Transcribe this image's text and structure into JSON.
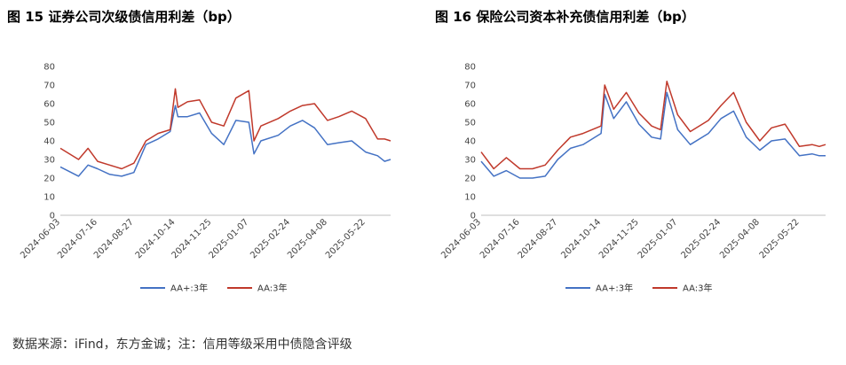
{
  "figures": [
    {
      "title": "图 15 证券公司次级债信用利差（bp）"
    },
    {
      "title": "图 16 保险公司资本补充债信用利差（bp）"
    }
  ],
  "footer": "数据来源：iFind，东方金诚；注：信用等级采用中债隐含评级",
  "colors": {
    "AA+": "#4472c4",
    "AA": "#c0392b"
  },
  "chart_data": [
    {
      "type": "line",
      "title": "图 15 证券公司次级债信用利差（bp）",
      "ylim": [
        0,
        80
      ],
      "yticks": [
        0,
        10,
        20,
        30,
        40,
        50,
        60,
        70,
        80
      ],
      "xtick_labels": [
        "2024-06-03",
        "2024-07-16",
        "2024-08-27",
        "2024-10-14",
        "2024-11-25",
        "2025-01-07",
        "2025-02-24",
        "2025-04-08",
        "2025-05-22"
      ],
      "legend": "bottom",
      "grid": false,
      "x": [
        "2024-06-03",
        "2024-06-24",
        "2024-07-05",
        "2024-07-16",
        "2024-07-30",
        "2024-08-13",
        "2024-08-27",
        "2024-09-10",
        "2024-09-24",
        "2024-10-08",
        "2024-10-14",
        "2024-10-17",
        "2024-10-28",
        "2024-11-11",
        "2024-11-25",
        "2024-12-09",
        "2024-12-23",
        "2025-01-07",
        "2025-01-13",
        "2025-01-21",
        "2025-02-10",
        "2025-02-24",
        "2025-03-10",
        "2025-03-24",
        "2025-04-08",
        "2025-04-21",
        "2025-05-06",
        "2025-05-22",
        "2025-06-05",
        "2025-06-13",
        "2025-06-20"
      ],
      "series": [
        {
          "name": "AA+:3年",
          "values": [
            26,
            21,
            27,
            25,
            22,
            21,
            23,
            38,
            41,
            45,
            59,
            53,
            53,
            55,
            44,
            38,
            51,
            50,
            33,
            40,
            43,
            48,
            51,
            47,
            38,
            39,
            40,
            34,
            32,
            29,
            30
          ]
        },
        {
          "name": "AA:3年",
          "values": [
            36,
            30,
            36,
            29,
            27,
            25,
            28,
            40,
            44,
            46,
            68,
            58,
            61,
            62,
            50,
            48,
            63,
            67,
            40,
            48,
            52,
            56,
            59,
            60,
            51,
            53,
            56,
            52,
            41,
            41,
            40
          ]
        }
      ]
    },
    {
      "type": "line",
      "title": "图 16 保险公司资本补充债信用利差（bp）",
      "ylim": [
        0,
        80
      ],
      "yticks": [
        0,
        10,
        20,
        30,
        40,
        50,
        60,
        70,
        80
      ],
      "xtick_labels": [
        "2024-06-03",
        "2024-07-16",
        "2024-08-27",
        "2024-10-14",
        "2024-11-25",
        "2025-01-07",
        "2025-02-24",
        "2025-04-08",
        "2025-05-22"
      ],
      "legend": "bottom",
      "grid": false,
      "x": [
        "2024-06-03",
        "2024-06-17",
        "2024-07-01",
        "2024-07-16",
        "2024-07-30",
        "2024-08-13",
        "2024-08-27",
        "2024-09-10",
        "2024-09-24",
        "2024-10-14",
        "2024-10-18",
        "2024-10-28",
        "2024-11-11",
        "2024-11-25",
        "2024-12-09",
        "2024-12-19",
        "2024-12-26",
        "2025-01-07",
        "2025-01-21",
        "2025-02-10",
        "2025-02-24",
        "2025-03-10",
        "2025-03-24",
        "2025-04-08",
        "2025-04-21",
        "2025-05-06",
        "2025-05-22",
        "2025-06-05",
        "2025-06-13",
        "2025-06-20"
      ],
      "series": [
        {
          "name": "AA+:3年",
          "values": [
            29,
            21,
            24,
            20,
            20,
            21,
            30,
            36,
            38,
            44,
            65,
            52,
            61,
            49,
            42,
            41,
            66,
            46,
            38,
            44,
            52,
            56,
            42,
            35,
            40,
            41,
            32,
            33,
            32,
            32
          ]
        },
        {
          "name": "AA:3年",
          "values": [
            34,
            25,
            31,
            25,
            25,
            27,
            35,
            42,
            44,
            48,
            70,
            57,
            66,
            55,
            48,
            46,
            72,
            54,
            45,
            51,
            59,
            66,
            50,
            40,
            47,
            49,
            37,
            38,
            37,
            38
          ]
        }
      ]
    }
  ]
}
